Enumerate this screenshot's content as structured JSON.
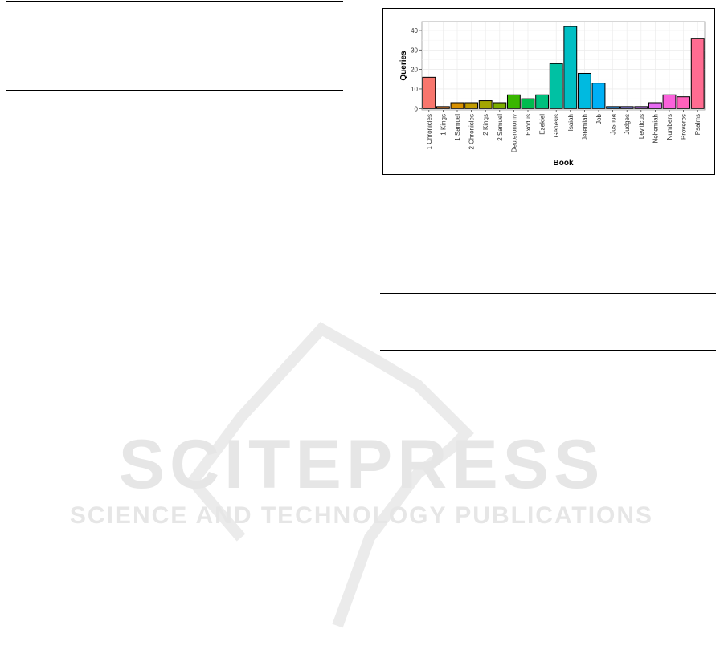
{
  "chart_data": {
    "type": "bar",
    "title": "",
    "xlabel": "Book",
    "ylabel": "Queries",
    "categories": [
      "1 Chronicles",
      "1 Kings",
      "1 Samuel",
      "2 Chronicles",
      "2 Kings",
      "2 Samuel",
      "Deuteronomy",
      "Exodus",
      "Ezekiel",
      "Genesis",
      "Isaiah",
      "Jeremiah",
      "Job",
      "Joshua",
      "Judges",
      "Leviticus",
      "Nehemiah",
      "Numbers",
      "Proverbs",
      "Psalms"
    ],
    "values": [
      16,
      1,
      3,
      3,
      4,
      3,
      7,
      5,
      7,
      23,
      42,
      18,
      13,
      1,
      1,
      1,
      3,
      7,
      6,
      36
    ],
    "colors": [
      "#F8766D",
      "#EA8331",
      "#D89000",
      "#C09B00",
      "#A3A500",
      "#7CAE00",
      "#39B600",
      "#00BB4E",
      "#00BF7D",
      "#00C1A3",
      "#00BFC4",
      "#00BAE0",
      "#00B0F6",
      "#35A2FF",
      "#9590FF",
      "#C77CFF",
      "#E76BF3",
      "#FA62DB",
      "#FF62BC",
      "#FF6C91"
    ],
    "yticks": [
      0,
      10,
      20,
      30,
      40
    ],
    "ylim": [
      -0.7,
      44.5
    ],
    "grid": true,
    "legend": "none"
  },
  "watermark": {
    "line1": "SCITEPRESS",
    "line2": "SCIENCE AND TECHNOLOGY PUBLICATIONS"
  }
}
